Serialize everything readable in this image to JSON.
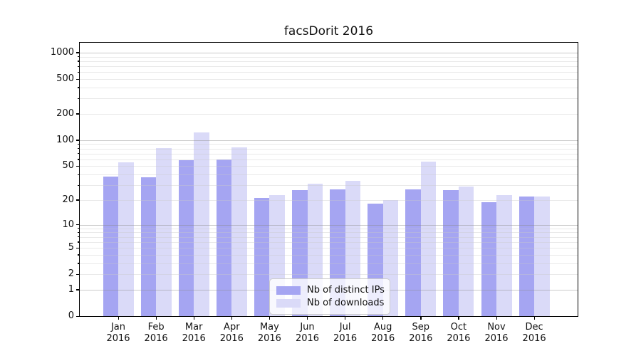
{
  "chart_data": {
    "type": "bar",
    "title": "facsDorit 2016",
    "categories": [
      "Jan 2016",
      "Feb 2016",
      "Mar 2016",
      "Apr 2016",
      "May 2016",
      "Jun 2016",
      "Jul 2016",
      "Aug 2016",
      "Sep 2016",
      "Oct 2016",
      "Nov 2016",
      "Dec 2016"
    ],
    "series": [
      {
        "name": "Nb of distinct IPs",
        "color": "#a5a5f2",
        "values": [
          38,
          37,
          59,
          60,
          21,
          26,
          27,
          18,
          27,
          26,
          19,
          22
        ]
      },
      {
        "name": "Nb of downloads",
        "color": "#dadaf8",
        "values": [
          55,
          81,
          123,
          82,
          23,
          31,
          34,
          20,
          56,
          29,
          23,
          22
        ]
      }
    ],
    "yscale": "log1p",
    "yticks": [
      0,
      1,
      2,
      5,
      10,
      20,
      50,
      100,
      200,
      500,
      1000
    ],
    "ytick_labels": [
      "0",
      "1",
      "2",
      "5",
      "10",
      "20",
      "50",
      "100",
      "200",
      "500",
      "1000"
    ],
    "grid_major_values": [
      1,
      10,
      100,
      1000
    ],
    "ylim": [
      0,
      1300
    ],
    "legend_position": "lower-center",
    "grid": true,
    "xlabel": "",
    "ylabel": ""
  },
  "colors": {
    "background": "#ffffff",
    "axis_frame": "#000000",
    "grid_major": "#c6c6c6",
    "grid_minor": "#ebebeb",
    "text": "#111111"
  }
}
